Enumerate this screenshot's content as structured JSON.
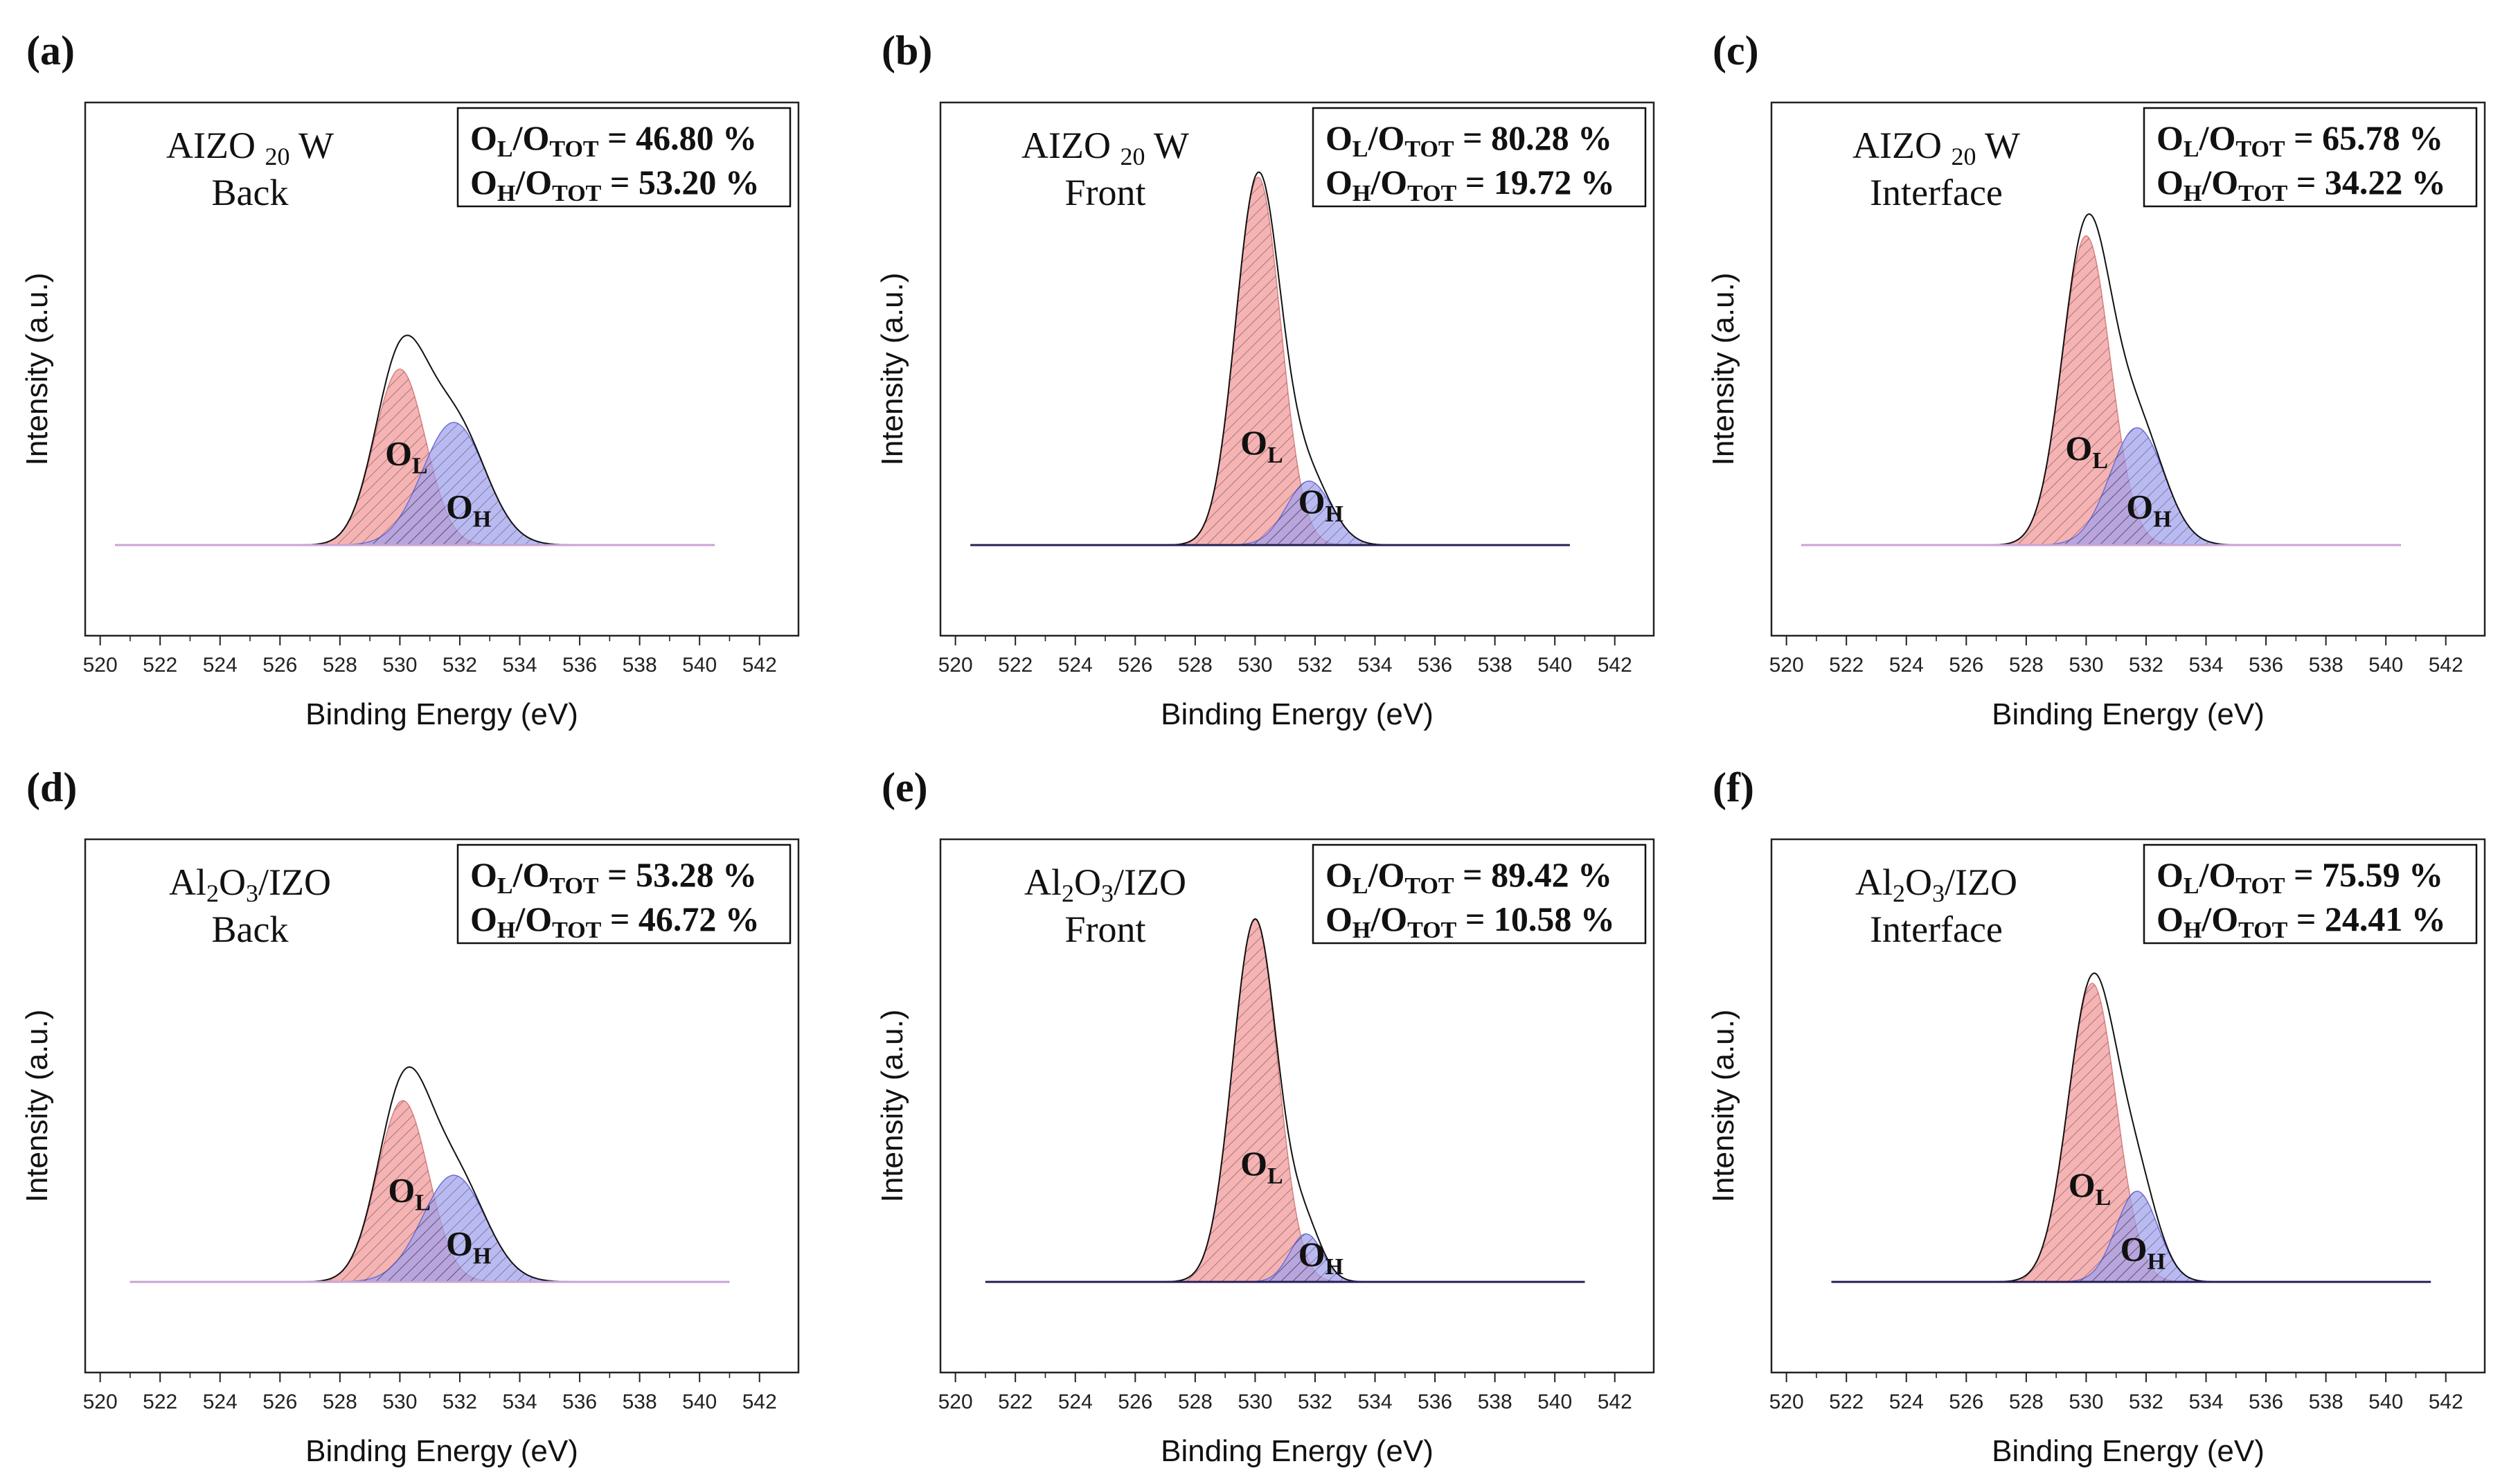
{
  "figure": {
    "xlabel": "Binding Energy (eV)",
    "ylabel": "Intensity (a.u.)",
    "colors": {
      "ol_fill": "#f4a6a6",
      "ol_stroke": "#d98080",
      "oh_fill": "#9fa0ee",
      "oh_stroke": "#6d6ed6",
      "envelope": "#111111",
      "baseline_light": "#c9a4d4",
      "baseline_dark": "#2a1f5a",
      "hatch": "#333333"
    }
  },
  "chart_data": [
    {
      "panel": "(a)",
      "type": "area",
      "title": "",
      "sample_line1": "AIZO 20 W",
      "sample_line2": "Back",
      "ol_ratio": "46.80 %",
      "oh_ratio": "53.20 %",
      "xlabel": "Binding Energy (eV)",
      "ylabel": "Intensity (a.u.)",
      "xlim": [
        519.5,
        543.3
      ],
      "ylim": [
        0,
        1
      ],
      "x_ticks": [
        520,
        522,
        524,
        526,
        528,
        530,
        532,
        534,
        536,
        538,
        540,
        542
      ],
      "baseline": 0.17,
      "x_range": [
        520.5,
        540.5
      ],
      "series": [
        {
          "name": "O_L",
          "center": 530.0,
          "height": 0.33,
          "sigma": 0.85
        },
        {
          "name": "O_H",
          "center": 531.8,
          "height": 0.23,
          "sigma": 1.05
        }
      ],
      "ol_label_x": 530.2,
      "ol_label_y": 0.32,
      "oh_label_x": 532.0,
      "oh_label_y": 0.22,
      "baseline_style": "light"
    },
    {
      "panel": "(b)",
      "type": "area",
      "title": "",
      "sample_line1": "AIZO 20 W",
      "sample_line2": "Front",
      "ol_ratio": "80.28 %",
      "oh_ratio": "19.72 %",
      "xlabel": "Binding Energy (eV)",
      "ylabel": "Intensity (a.u.)",
      "xlim": [
        519.5,
        543.3
      ],
      "ylim": [
        0,
        1
      ],
      "x_ticks": [
        520,
        522,
        524,
        526,
        528,
        530,
        532,
        534,
        536,
        538,
        540,
        542
      ],
      "baseline": 0.17,
      "x_range": [
        520.5,
        540.5
      ],
      "series": [
        {
          "name": "O_L",
          "center": 530.1,
          "height": 0.69,
          "sigma": 0.75
        },
        {
          "name": "O_H",
          "center": 531.8,
          "height": 0.12,
          "sigma": 0.75
        }
      ],
      "ol_label_x": 530.2,
      "ol_label_y": 0.34,
      "oh_label_x": 531.9,
      "oh_label_y": 0.23,
      "baseline_style": "dark"
    },
    {
      "panel": "(c)",
      "type": "area",
      "title": "",
      "sample_line1": "AIZO 20 W",
      "sample_line2": "Interface",
      "ol_ratio": "65.78 %",
      "oh_ratio": "34.22 %",
      "xlabel": "Binding Energy (eV)",
      "ylabel": "Intensity (a.u.)",
      "xlim": [
        519.5,
        543.3
      ],
      "ylim": [
        0,
        1
      ],
      "x_ticks": [
        520,
        522,
        524,
        526,
        528,
        530,
        532,
        534,
        536,
        538,
        540,
        542
      ],
      "baseline": 0.17,
      "x_range": [
        520.5,
        540.5
      ],
      "series": [
        {
          "name": "O_L",
          "center": 530.0,
          "height": 0.58,
          "sigma": 0.8
        },
        {
          "name": "O_H",
          "center": 531.7,
          "height": 0.22,
          "sigma": 0.9
        }
      ],
      "ol_label_x": 530.0,
      "ol_label_y": 0.33,
      "oh_label_x": 531.8,
      "oh_label_y": 0.22,
      "baseline_style": "light"
    },
    {
      "panel": "(d)",
      "type": "area",
      "title": "",
      "sample_line1": "Al2O3/IZO",
      "sample_line2": "Back",
      "ol_ratio": "53.28 %",
      "oh_ratio": "46.72 %",
      "xlabel": "Binding Energy (eV)",
      "ylabel": "Intensity (a.u.)",
      "xlim": [
        519.5,
        543.3
      ],
      "ylim": [
        0,
        1
      ],
      "x_ticks": [
        520,
        522,
        524,
        526,
        528,
        530,
        532,
        534,
        536,
        538,
        540,
        542
      ],
      "baseline": 0.17,
      "x_range": [
        521.0,
        541.0
      ],
      "series": [
        {
          "name": "O_L",
          "center": 530.1,
          "height": 0.34,
          "sigma": 0.85
        },
        {
          "name": "O_H",
          "center": 531.8,
          "height": 0.2,
          "sigma": 1.05
        }
      ],
      "ol_label_x": 530.3,
      "ol_label_y": 0.32,
      "oh_label_x": 532.0,
      "oh_label_y": 0.22,
      "baseline_style": "light"
    },
    {
      "panel": "(e)",
      "type": "area",
      "title": "",
      "sample_line1": "Al2O3/IZO",
      "sample_line2": "Front",
      "ol_ratio": "89.42 %",
      "oh_ratio": "10.58 %",
      "xlabel": "Binding Energy (eV)",
      "ylabel": "Intensity (a.u.)",
      "xlim": [
        519.5,
        543.3
      ],
      "ylim": [
        0,
        1
      ],
      "x_ticks": [
        520,
        522,
        524,
        526,
        528,
        530,
        532,
        534,
        536,
        538,
        540,
        542
      ],
      "baseline": 0.17,
      "x_range": [
        521.0,
        541.0
      ],
      "series": [
        {
          "name": "O_L",
          "center": 530.0,
          "height": 0.68,
          "sigma": 0.75
        },
        {
          "name": "O_H",
          "center": 531.7,
          "height": 0.09,
          "sigma": 0.55
        }
      ],
      "ol_label_x": 530.2,
      "ol_label_y": 0.37,
      "oh_label_x": 531.9,
      "oh_label_y": 0.2,
      "baseline_style": "dark"
    },
    {
      "panel": "(f)",
      "type": "area",
      "title": "",
      "sample_line1": "Al2O3/IZO",
      "sample_line2": "Interface",
      "ol_ratio": "75.59 %",
      "oh_ratio": "24.41 %",
      "xlabel": "Binding Energy (eV)",
      "ylabel": "Intensity (a.u.)",
      "xlim": [
        519.5,
        543.3
      ],
      "ylim": [
        0,
        1
      ],
      "x_ticks": [
        520,
        522,
        524,
        526,
        528,
        530,
        532,
        534,
        536,
        538,
        540,
        542
      ],
      "baseline": 0.17,
      "x_range": [
        521.5,
        541.5
      ],
      "series": [
        {
          "name": "O_L",
          "center": 530.2,
          "height": 0.56,
          "sigma": 0.8
        },
        {
          "name": "O_H",
          "center": 531.7,
          "height": 0.17,
          "sigma": 0.7
        }
      ],
      "ol_label_x": 530.1,
      "ol_label_y": 0.33,
      "oh_label_x": 531.6,
      "oh_label_y": 0.21,
      "baseline_style": "dark"
    }
  ]
}
